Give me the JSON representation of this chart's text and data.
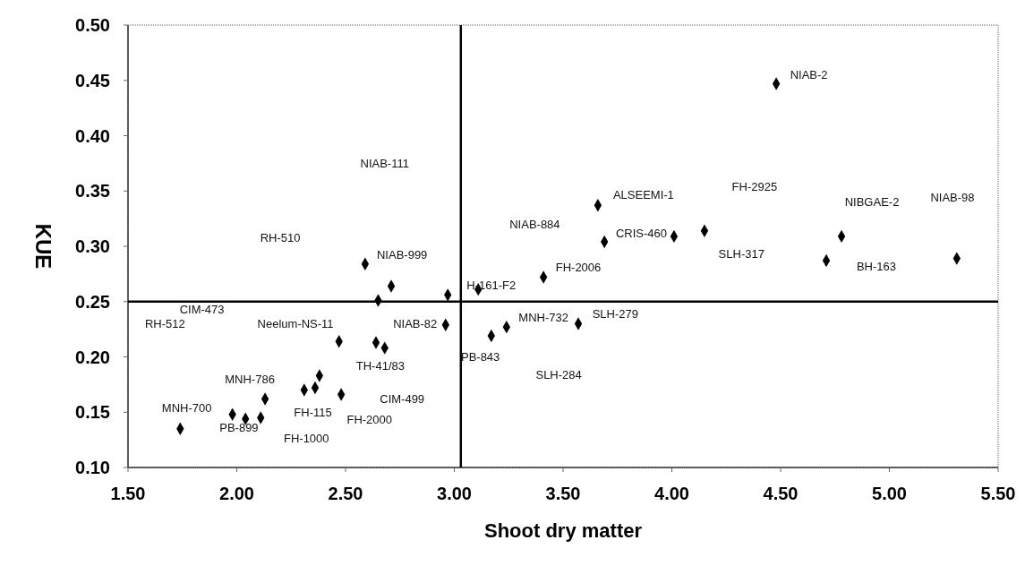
{
  "chart_data": {
    "type": "scatter",
    "xlabel": "Shoot dry matter",
    "ylabel": "KUE",
    "marker": "diamond",
    "grid": false,
    "series": [
      {
        "color": "#000000",
        "x": [
          1.74,
          1.98,
          2.04,
          2.11,
          2.13,
          2.31,
          2.36,
          2.38,
          2.48,
          2.47,
          2.64,
          2.68,
          2.59,
          2.71,
          2.65,
          2.97,
          2.96,
          3.11,
          3.17,
          3.24,
          3.41,
          3.57,
          3.66,
          3.69,
          4.01,
          4.15,
          4.48,
          4.78,
          4.71,
          5.31
        ],
        "values": [
          0.135,
          0.148,
          0.144,
          0.145,
          0.162,
          0.17,
          0.172,
          0.183,
          0.166,
          0.214,
          0.213,
          0.208,
          0.284,
          0.264,
          0.251,
          0.256,
          0.229,
          0.261,
          0.219,
          0.227,
          0.272,
          0.23,
          0.337,
          0.304,
          0.309,
          0.314,
          0.447,
          0.309,
          0.287,
          0.289
        ]
      }
    ],
    "xlim": [
      1.5,
      5.5
    ],
    "ylim": [
      0.1,
      0.5
    ],
    "xticks": [
      {
        "value": 1.5,
        "label": "1.50"
      },
      {
        "value": 2,
        "label": "2.00"
      },
      {
        "value": 2.5,
        "label": "2.50"
      },
      {
        "value": 3,
        "label": "3.00"
      },
      {
        "value": 3.5,
        "label": "3.50"
      },
      {
        "value": 4,
        "label": "4.00"
      },
      {
        "value": 4.5,
        "label": "4.50"
      },
      {
        "value": 5,
        "label": "5.00"
      },
      {
        "value": 5.5,
        "label": "5.50"
      }
    ],
    "yticks": [
      {
        "value": 0.1,
        "label": "0.10"
      },
      {
        "value": 0.15,
        "label": "0.15"
      },
      {
        "value": 0.2,
        "label": "0.20"
      },
      {
        "value": 0.25,
        "label": "0.25"
      },
      {
        "value": 0.3,
        "label": "0.30"
      },
      {
        "value": 0.35,
        "label": "0.35"
      },
      {
        "value": 0.4,
        "label": "0.40"
      },
      {
        "value": 0.45,
        "label": "0.45"
      },
      {
        "value": 0.5,
        "label": "0.50"
      }
    ],
    "ref_lines": [
      {
        "axis": "x",
        "value": 3.03,
        "color": "#000000"
      },
      {
        "axis": "y",
        "value": 0.25,
        "color": "#000000"
      }
    ],
    "annotations": [
      "NIAB-2",
      "NIAB-111",
      "ALSEEMI-1",
      "FH-2925",
      "NIBGAE-2",
      "NIAB-98",
      "NIAB-884",
      "RH-510",
      "CRIS-460",
      "SLH-317",
      "NIAB-999",
      "BH-163",
      "FH-2006",
      "H-161-F2",
      "CIM-473",
      "MNH-732",
      "SLH-279",
      "RH-512",
      "Neelum-NS-11",
      "NIAB-82",
      "TH-41/83",
      "PB-843",
      "SLH-284",
      "MNH-786",
      "CIM-499",
      "FH-115",
      "FH-2000",
      "MNH-700",
      "PB-899",
      "FH-1000"
    ]
  }
}
